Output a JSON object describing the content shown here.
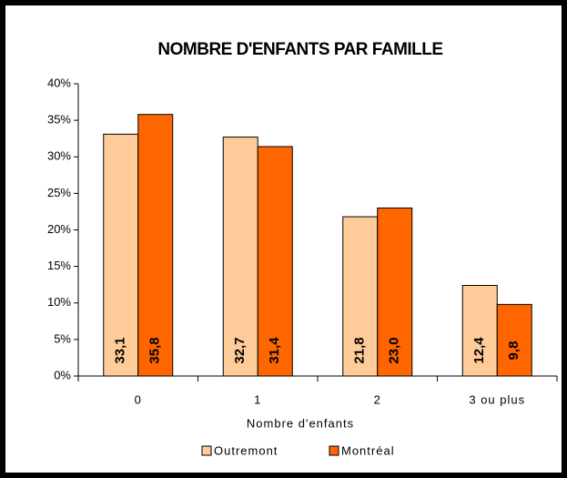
{
  "chart_data": {
    "type": "bar",
    "title": "NOMBRE D'ENFANTS PAR FAMILLE",
    "x_label": "Nombre d'enfants",
    "categories": [
      "0",
      "1",
      "2",
      "3 ou plus"
    ],
    "series": [
      {
        "name": "Outremont",
        "color": "#FFCC99",
        "values": [
          33.1,
          32.7,
          21.8,
          12.4
        ],
        "value_labels": [
          "33,1",
          "32,7",
          "21,8",
          "12,4"
        ]
      },
      {
        "name": "Montréal",
        "color": "#FF6600",
        "values": [
          35.8,
          31.4,
          23.0,
          9.8
        ],
        "value_labels": [
          "35,8",
          "31,4",
          "23,0",
          "9,8"
        ]
      }
    ],
    "ylim": [
      0,
      40
    ],
    "yticks": [
      {
        "value": 0,
        "label": "0%"
      },
      {
        "value": 5,
        "label": "5%"
      },
      {
        "value": 10,
        "label": "10%"
      },
      {
        "value": 15,
        "label": "15%"
      },
      {
        "value": 20,
        "label": "20%"
      },
      {
        "value": 25,
        "label": "25%"
      },
      {
        "value": 30,
        "label": "30%"
      },
      {
        "value": 35,
        "label": "35%"
      },
      {
        "value": 40,
        "label": "40%"
      }
    ],
    "grid": false
  }
}
